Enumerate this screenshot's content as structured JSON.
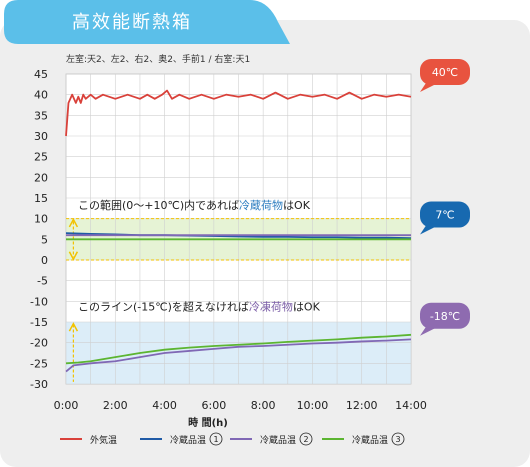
{
  "header": {
    "title": "高效能断熱箱"
  },
  "chart_data": {
    "type": "line",
    "subtitle": "左室:天2、左2、右2、奥2、手前1 / 右室:天1",
    "xlabel": "時 間(h)",
    "ylabel": "",
    "x_ticks": [
      "0:00",
      "2:00",
      "4:00",
      "6:00",
      "8:00",
      "10:00",
      "12:00",
      "14:00"
    ],
    "y_ticks": [
      45,
      40,
      35,
      30,
      25,
      20,
      15,
      10,
      5,
      0,
      -5,
      -10,
      -15,
      -20,
      -25,
      -30
    ],
    "xlim": [
      0,
      14
    ],
    "ylim": [
      -30,
      45
    ],
    "grid": true,
    "legend_position": "bottom",
    "bands": [
      {
        "from": 0,
        "to": 10,
        "color": "#e6f3d5"
      },
      {
        "from": -30,
        "to": -15,
        "color": "#dcedf8"
      }
    ],
    "annotations": [
      {
        "id": "cold",
        "y": 12.3,
        "prefix": "この範囲(0〜+10℃)内であれば",
        "highlight": "冷蔵荷物",
        "highlight_color": "#2d7dc0",
        "suffix": "はOK"
      },
      {
        "id": "frozen",
        "y": -12.2,
        "prefix": "このライン(-15℃)を超えなければ",
        "highlight": "冷凍荷物",
        "highlight_color": "#7b5ea7",
        "suffix": "はOK"
      }
    ],
    "badges": [
      {
        "label": "40℃",
        "color": "#e8533f",
        "y": 46
      },
      {
        "label": "7℃",
        "color": "#1769b0",
        "y": 11
      },
      {
        "label": "-18℃",
        "color": "#8e6bb0",
        "y": -13.5
      }
    ],
    "series": [
      {
        "name": "外気温",
        "color": "#d9413a",
        "x": [
          0,
          0.1,
          0.25,
          0.4,
          0.5,
          0.6,
          0.7,
          0.8,
          1,
          1.2,
          1.5,
          2,
          2.5,
          3,
          3.3,
          3.6,
          3.9,
          4.1,
          4.3,
          4.6,
          5,
          5.5,
          6,
          6.5,
          7,
          7.5,
          8,
          8.5,
          9,
          9.5,
          10,
          10.5,
          11,
          11.5,
          12,
          12.5,
          13,
          13.5,
          14
        ],
        "y": [
          30,
          38,
          40,
          38,
          39.5,
          38,
          40,
          39,
          40,
          39,
          40,
          39,
          40,
          39,
          40,
          39,
          40,
          41,
          39,
          40,
          39,
          40,
          39,
          40,
          39.5,
          40,
          39,
          40.5,
          39,
          40,
          39.5,
          40,
          39,
          40.5,
          39,
          40,
          39.5,
          40,
          39.5
        ]
      },
      {
        "name": "冷蔵品温①",
        "color": "#1f5aa6",
        "x": [
          0,
          0.5,
          1,
          2,
          3,
          4,
          5,
          6,
          7,
          8,
          9,
          10,
          11,
          12,
          13,
          14
        ],
        "y": [
          6.5,
          6.4,
          6.3,
          6.2,
          6,
          6,
          5.9,
          5.8,
          5.7,
          5.6,
          5.6,
          5.5,
          5.5,
          5.4,
          5.4,
          5.3
        ]
      },
      {
        "name": "冷蔵品温②",
        "color": "#8068b5",
        "x": [
          0,
          0.3,
          1,
          2,
          3,
          4,
          5,
          6,
          7,
          8,
          9,
          10,
          11,
          12,
          13,
          14
        ],
        "y": [
          -27,
          -25.5,
          -25,
          -24.5,
          -23.5,
          -22.5,
          -22,
          -21.5,
          -21,
          -20.8,
          -20.5,
          -20.2,
          -20,
          -19.7,
          -19.5,
          -19.2
        ]
      },
      {
        "name": "冷蔵品温③",
        "color": "#5cb531",
        "x": [
          0,
          0.5,
          1,
          2,
          3,
          4,
          5,
          6,
          7,
          8,
          9,
          10,
          11,
          12,
          13,
          14
        ],
        "y": [
          -25,
          -24.8,
          -24.5,
          -23.5,
          -22.5,
          -21.7,
          -21.2,
          -20.8,
          -20.5,
          -20.2,
          -19.8,
          -19.5,
          -19.2,
          -18.8,
          -18.5,
          -18.1
        ]
      },
      {
        "name": "冷蔵品温_green_top",
        "legend": false,
        "color": "#5cb531",
        "x": [
          0,
          2,
          4,
          6,
          8,
          10,
          12,
          14
        ],
        "y": [
          5,
          5,
          5,
          5,
          5,
          5,
          5,
          5
        ]
      },
      {
        "name": "冷蔵品温_purple_top",
        "legend": false,
        "color": "#8068b5",
        "x": [
          0,
          2,
          4,
          6,
          8,
          10,
          12,
          14
        ],
        "y": [
          6,
          6,
          6,
          6,
          6,
          6,
          6,
          6
        ]
      }
    ],
    "legend": [
      {
        "name": "外気温",
        "color": "#d9413a"
      },
      {
        "name": "冷蔵品温",
        "num": "1",
        "color": "#1f5aa6"
      },
      {
        "name": "冷蔵品温",
        "num": "2",
        "color": "#8068b5"
      },
      {
        "name": "冷蔵品温",
        "num": "3",
        "color": "#5cb531"
      }
    ]
  }
}
